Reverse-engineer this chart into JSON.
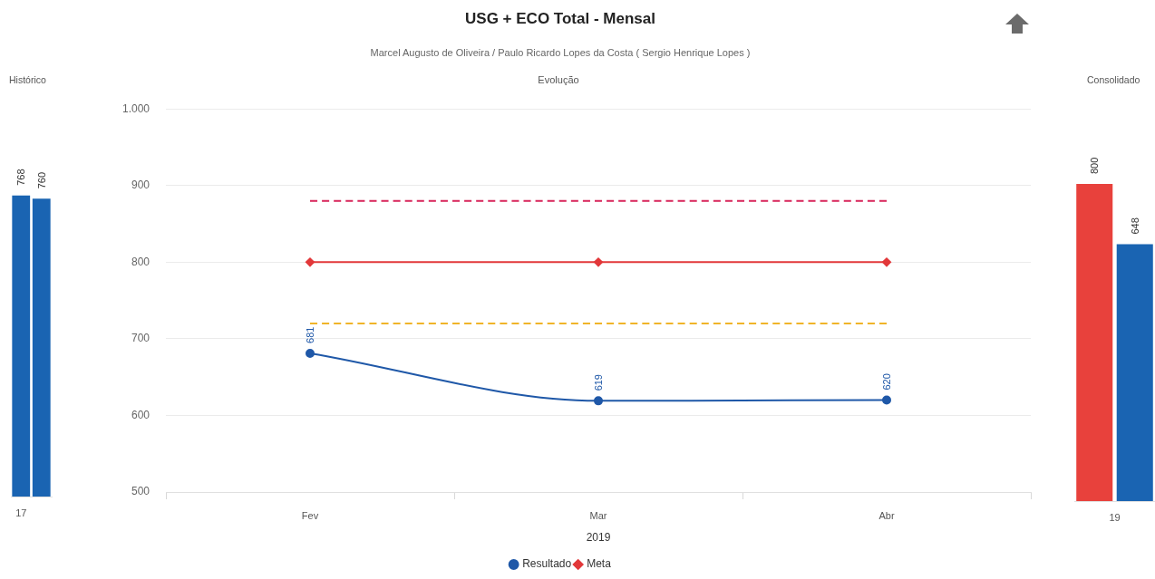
{
  "chart_data": [
    {
      "type": "bar",
      "title": "Histórico",
      "categories": [
        "17",
        null
      ],
      "values": [
        768,
        760
      ],
      "color": "#1a64b2",
      "data_labels": true,
      "tick_labels": "x"
    },
    {
      "type": "line",
      "title": "USG + ECO Total - Mensal",
      "subtitle": "Marcel Augusto de Oliveira / Paulo Ricardo Lopes da Costa ( Sergio Henrique Lopes )",
      "annotations": [
        "Evolução"
      ],
      "xlabel": "2019",
      "categories": [
        "Fev",
        "Mar",
        "Abr"
      ],
      "ylim": [
        500,
        1000
      ],
      "yticks": [
        500,
        600,
        700,
        800,
        900,
        {
          "value": 1000,
          "label": "1.000"
        }
      ],
      "grid": "y",
      "legend": "bottom",
      "series": [
        {
          "name": "Resultado",
          "color": "#1f58a8",
          "values": [
            681,
            619,
            620
          ],
          "marker": "circle",
          "value_labels": [
            "681",
            "619",
            "620"
          ]
        },
        {
          "name": "Meta",
          "color": "#e2383a",
          "values": [
            800,
            800,
            800
          ],
          "marker": "diamond"
        },
        {
          "color": "#d8245a",
          "values": [
            880,
            880,
            880
          ],
          "line_style": "dashed",
          "marker": "none"
        },
        {
          "color": "#f0b429",
          "values": [
            720,
            720,
            720
          ],
          "line_style": "dashed",
          "marker": "none"
        }
      ]
    },
    {
      "type": "bar",
      "title": "Consolidado",
      "categories": [
        "19"
      ],
      "series": [
        {
          "color": "#e8413c",
          "values": [
            800
          ]
        },
        {
          "color": "#1a64b2",
          "values": [
            648
          ]
        }
      ],
      "data_labels": true,
      "tick_labels": "x"
    }
  ]
}
